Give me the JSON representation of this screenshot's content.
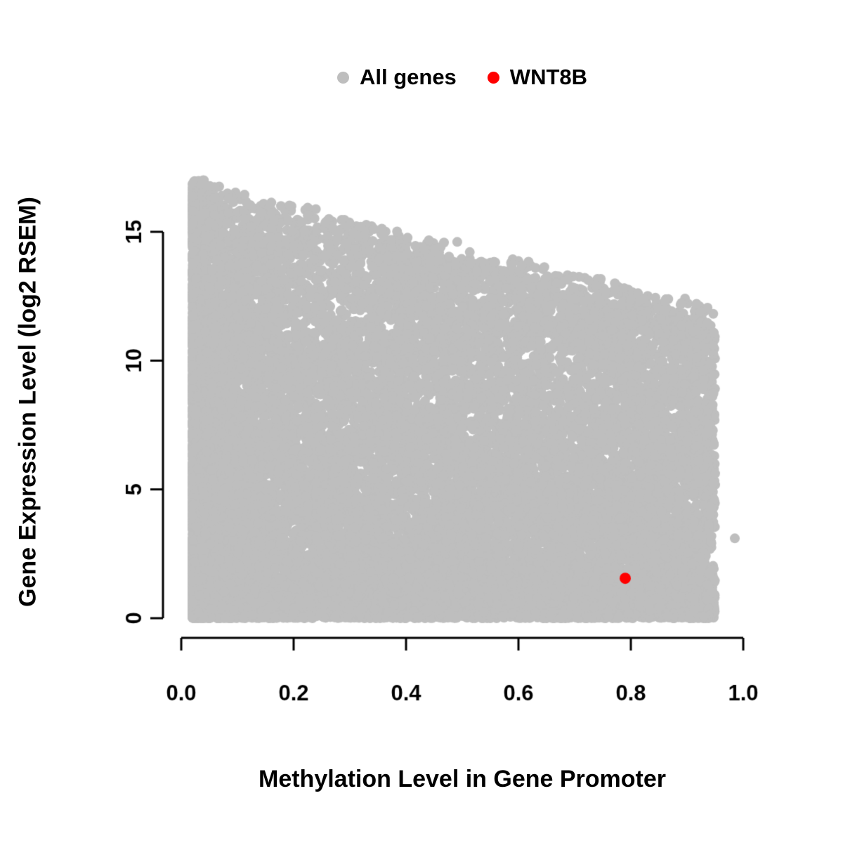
{
  "figure": {
    "background": "#FFFFFF",
    "axis_color": "#000000"
  },
  "legend": {
    "position": "top-center",
    "items": [
      {
        "label": "All genes",
        "color": "#BEBEBE"
      },
      {
        "label": "WNT8B",
        "color": "#FF0000"
      }
    ]
  },
  "chart_data": {
    "type": "scatter",
    "title": "",
    "xlabel": "Methylation Level in Gene Promoter",
    "ylabel": "Gene Expression Level (log2 RSEM)",
    "xlim": [
      0.0,
      1.0
    ],
    "ylim": [
      0,
      17
    ],
    "x_ticks": [
      0.0,
      0.2,
      0.4,
      0.6,
      0.8,
      1.0
    ],
    "x_tick_labels": [
      "0.0",
      "0.2",
      "0.4",
      "0.6",
      "0.8",
      "1.0"
    ],
    "y_ticks": [
      0,
      5,
      10,
      15
    ],
    "y_tick_labels": [
      "0",
      "5",
      "10",
      "15"
    ],
    "grid": false,
    "legend_position": "top",
    "series": [
      {
        "name": "All genes",
        "color": "#BEBEBE",
        "marker": "circle",
        "point_radius_px": 7,
        "n_points": 18000,
        "distribution": {
          "seed": 20240607,
          "x_min": 0.02,
          "x_span": 0.93,
          "mixture": [
            {
              "w": 0.5,
              "type": "power",
              "exp": 2.4
            },
            {
              "w": 0.35,
              "type": "uniform"
            },
            {
              "w": 0.15,
              "type": "right",
              "start": 0.35
            }
          ],
          "envelope": {
            "intercept": 16.8,
            "slope": -5.3,
            "jitter": 0.9
          },
          "y_exp": 1.45
        },
        "explicit_points": [
          [
            0.985,
            3.1
          ]
        ],
        "summary": "Dense cloud: expression 0-16.5 at low methylation, upper envelope declines to ~12 at methylation 0.95; heavy density near y=0 across full methylation range"
      },
      {
        "name": "WNT8B",
        "color": "#FF0000",
        "marker": "circle",
        "point_radius_px": 8,
        "points": [
          [
            0.79,
            1.55
          ]
        ]
      }
    ]
  }
}
